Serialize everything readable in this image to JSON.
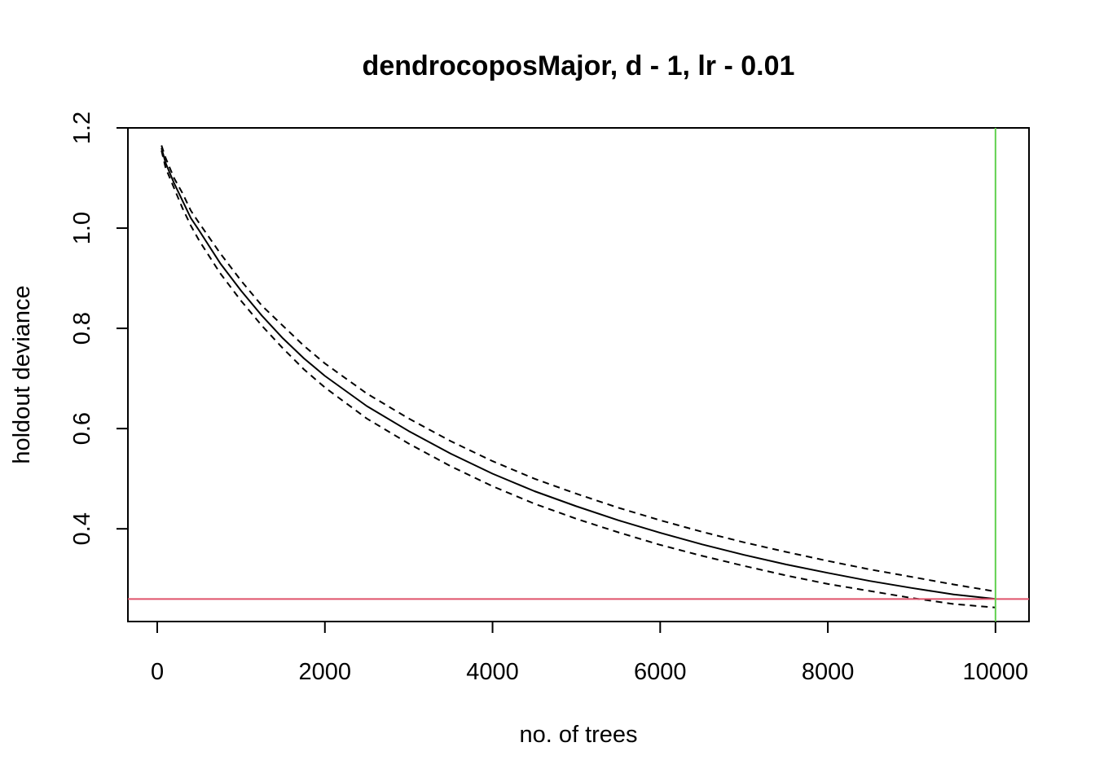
{
  "chart_data": {
    "type": "line",
    "title": "dendrocoposMajor, d - 1, lr - 0.01",
    "xlabel": "no. of trees",
    "ylabel": "holdout deviance",
    "xlim": [
      -350,
      10400
    ],
    "ylim": [
      0.215,
      1.2
    ],
    "x_ticks": [
      0,
      2000,
      4000,
      6000,
      8000,
      10000
    ],
    "x_tick_labels": [
      "0",
      "2000",
      "4000",
      "6000",
      "8000",
      "10000"
    ],
    "y_ticks": [
      0.4,
      0.6,
      0.8,
      1.0,
      1.2
    ],
    "y_tick_labels": [
      "0.4",
      "0.6",
      "0.8",
      "1.0",
      "1.2"
    ],
    "grid": false,
    "x": [
      50,
      100,
      200,
      300,
      400,
      500,
      750,
      1000,
      1250,
      1500,
      1750,
      2000,
      2500,
      3000,
      3500,
      4000,
      4500,
      5000,
      5500,
      6000,
      6500,
      7000,
      7500,
      8000,
      8500,
      9000,
      9500,
      10000
    ],
    "series": [
      {
        "style": "solid",
        "color": "#000000",
        "values": [
          1.16,
          1.13,
          1.09,
          1.055,
          1.02,
          0.995,
          0.93,
          0.875,
          0.825,
          0.78,
          0.74,
          0.705,
          0.645,
          0.595,
          0.55,
          0.51,
          0.475,
          0.445,
          0.417,
          0.392,
          0.369,
          0.348,
          0.329,
          0.312,
          0.296,
          0.282,
          0.269,
          0.26
        ]
      },
      {
        "style": "dashed",
        "color": "#000000",
        "values": [
          1.165,
          1.14,
          1.1,
          1.07,
          1.035,
          1.01,
          0.95,
          0.895,
          0.845,
          0.805,
          0.765,
          0.73,
          0.67,
          0.62,
          0.575,
          0.535,
          0.5,
          0.47,
          0.442,
          0.417,
          0.394,
          0.373,
          0.354,
          0.336,
          0.319,
          0.304,
          0.289,
          0.275
        ]
      },
      {
        "style": "dashed",
        "color": "#000000",
        "values": [
          1.155,
          1.12,
          1.08,
          1.04,
          1.005,
          0.975,
          0.91,
          0.855,
          0.805,
          0.76,
          0.718,
          0.682,
          0.62,
          0.57,
          0.525,
          0.485,
          0.45,
          0.42,
          0.393,
          0.368,
          0.346,
          0.326,
          0.307,
          0.29,
          0.276,
          0.262,
          0.25,
          0.243
        ]
      }
    ],
    "hline": {
      "y": 0.26,
      "color": "#DF536B"
    },
    "vline": {
      "x": 10000,
      "color": "#61D04F"
    }
  }
}
